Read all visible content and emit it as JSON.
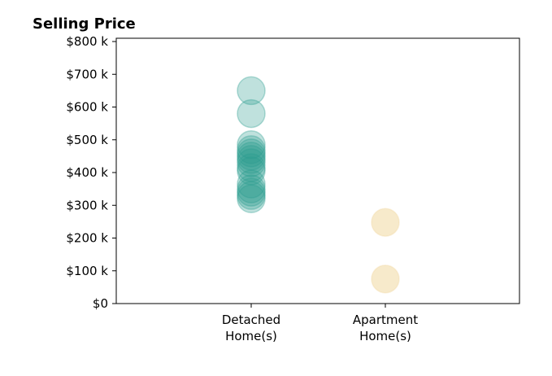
{
  "chart_data": {
    "type": "scatter",
    "title": "Selling Price",
    "xlabel": "",
    "ylabel": "",
    "categories": [
      {
        "line1": "Detached",
        "line2": "Home(s)"
      },
      {
        "line1": "Apartment",
        "line2": "Home(s)"
      }
    ],
    "ylim": [
      0,
      810000
    ],
    "yticks": [
      {
        "value": 0,
        "label": "$0"
      },
      {
        "value": 100000,
        "label": "$100 k"
      },
      {
        "value": 200000,
        "label": "$200 k"
      },
      {
        "value": 300000,
        "label": "$300 k"
      },
      {
        "value": 400000,
        "label": "$400 k"
      },
      {
        "value": 500000,
        "label": "$500 k"
      },
      {
        "value": 600000,
        "label": "$600 k"
      },
      {
        "value": 700000,
        "label": "$700 k"
      },
      {
        "value": 800000,
        "label": "$800 k"
      }
    ],
    "grid": false,
    "legend": "none",
    "series": [
      {
        "category_index": 0,
        "color": "#2a9d8f",
        "values": [
          650000,
          580000,
          485000,
          470000,
          460000,
          450000,
          440000,
          430000,
          415000,
          405000,
          365000,
          350000,
          340000,
          330000,
          320000
        ]
      },
      {
        "category_index": 1,
        "color": "#f1d8a0",
        "values": [
          248000,
          75000
        ]
      }
    ]
  }
}
